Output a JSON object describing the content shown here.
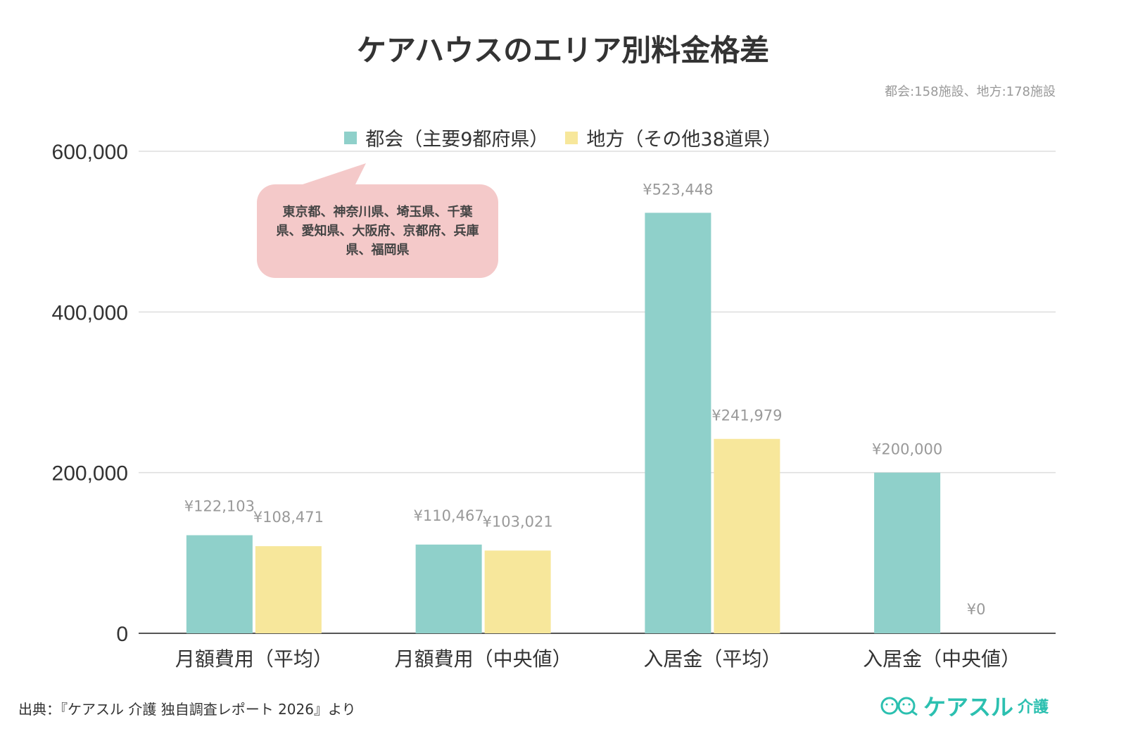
{
  "chart_data": {
    "type": "bar",
    "title": "ケアハウスのエリア別料金格差",
    "subtitle": "都会:158施設、地方:178施設",
    "categories": [
      "月額費用（平均）",
      "月額費用（中央値）",
      "入居金（平均）",
      "入居金（中央値）"
    ],
    "series": [
      {
        "name": "都会（主要9都府県）",
        "color": "#8fd0ca",
        "values": [
          122103,
          110467,
          523448,
          200000
        ],
        "labels": [
          "¥122,103",
          "¥110,467",
          "¥523,448",
          "¥200,000"
        ]
      },
      {
        "name": "地方（その他38道県）",
        "color": "#f7e79b",
        "values": [
          108471,
          103021,
          241979,
          0
        ],
        "labels": [
          "¥108,471",
          "¥103,021",
          "¥241,979",
          "¥0"
        ]
      }
    ],
    "ylim": [
      0,
      600000
    ],
    "yticks": [
      "0",
      "200,000",
      "400,000",
      "600,000"
    ],
    "ytick_values": [
      0,
      200000,
      400000,
      600000
    ],
    "grid": true,
    "legend": "top"
  },
  "callout": "東京都、神奈川県、埼玉県、千葉県、愛知県、大阪府、京都府、兵庫県、福岡県",
  "source": "出典：『ケアスル 介護 独自調査レポート 2026』より",
  "logo": {
    "text": "ケアスル",
    "suffix": "介護",
    "color": "#2cc0b0"
  }
}
